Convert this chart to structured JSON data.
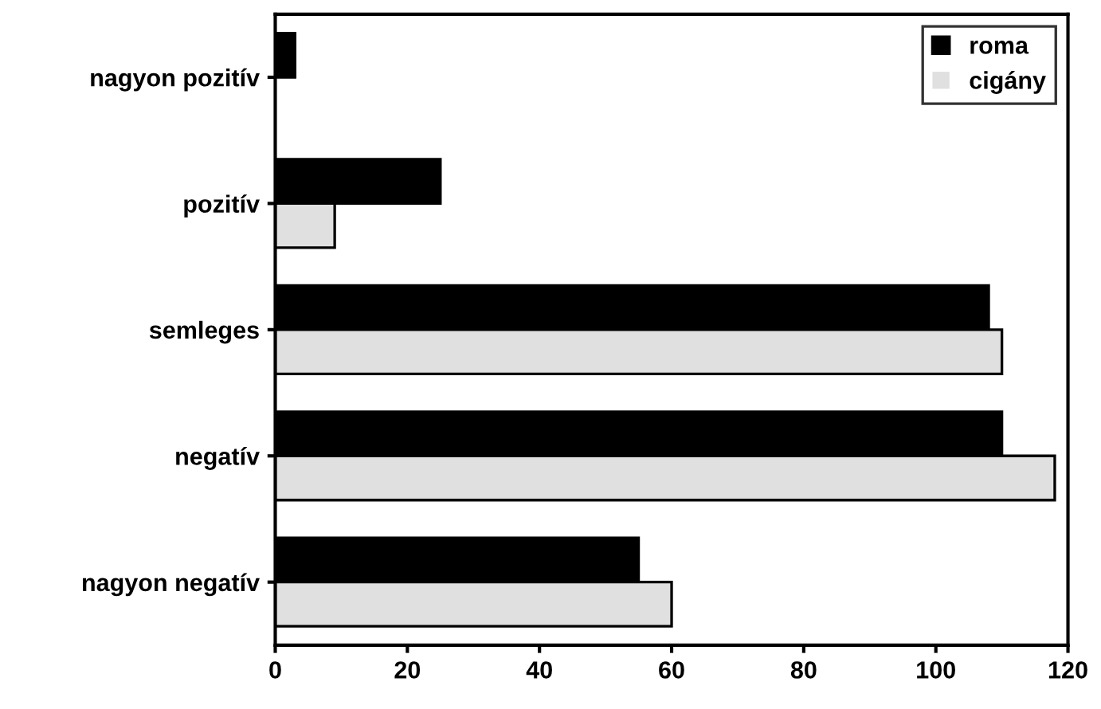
{
  "chart_data": {
    "type": "bar",
    "orientation": "horizontal",
    "categories": [
      "nagyon pozitív",
      "pozitív",
      "semleges",
      "negatív",
      "nagyon negatív"
    ],
    "series": [
      {
        "name": "roma",
        "color": "#000000",
        "values": [
          3,
          25,
          108,
          110,
          55
        ]
      },
      {
        "name": "cigány",
        "color": "#e0e0e0",
        "values": [
          0,
          9,
          110,
          118,
          60
        ]
      }
    ],
    "xlim": [
      0,
      120
    ],
    "xticks": [
      0,
      20,
      40,
      60,
      80,
      100,
      120
    ],
    "legend": "top right",
    "grid": false
  }
}
